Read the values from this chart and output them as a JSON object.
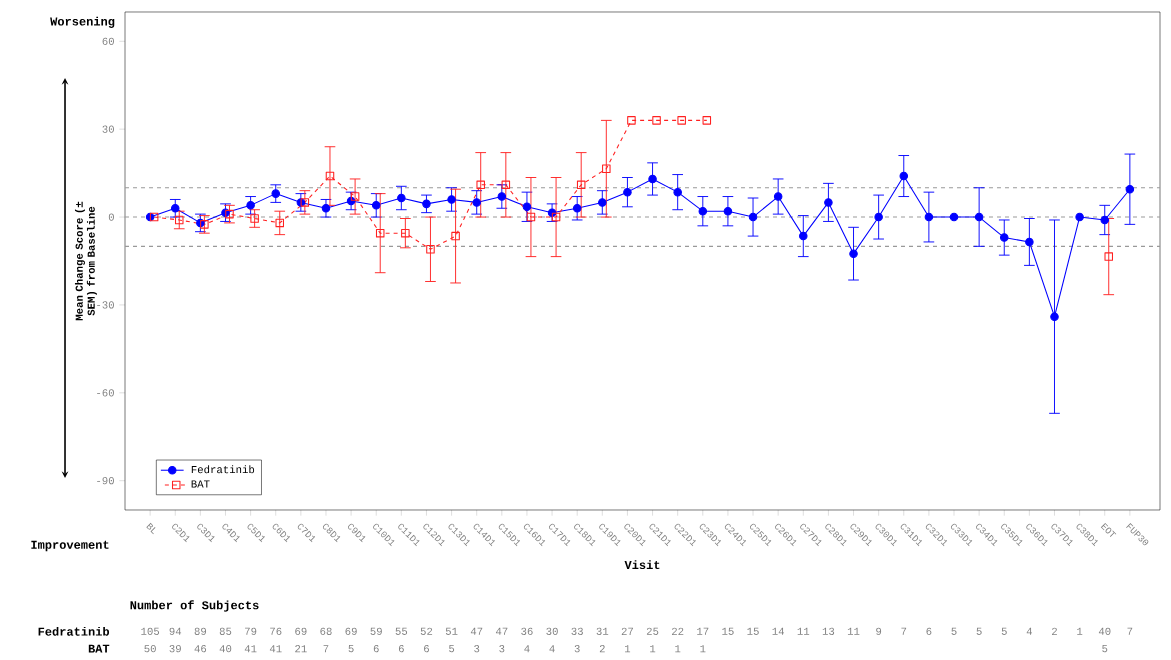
{
  "chart_data": {
    "type": "line",
    "xlabel": "Visit",
    "ylabel": "Mean Change Score (± SEM) from Baseline",
    "categories": [
      "BL",
      "C2D1",
      "C3D1",
      "C4D1",
      "C5D1",
      "C6D1",
      "C7D1",
      "C8D1",
      "C9D1",
      "C10D1",
      "C11D1",
      "C12D1",
      "C13D1",
      "C14D1",
      "C15D1",
      "C16D1",
      "C17D1",
      "C18D1",
      "C19D1",
      "C20D1",
      "C21D1",
      "C22D1",
      "C23D1",
      "C24D1",
      "C25D1",
      "C26D1",
      "C27D1",
      "C28D1",
      "C29D1",
      "C30D1",
      "C31D1",
      "C32D1",
      "C33D1",
      "C34D1",
      "C35D1",
      "C36D1",
      "C37D1",
      "C38D1",
      "EOT",
      "FUP30"
    ],
    "series": [
      {
        "name": "Fedratinib",
        "color": "#0000ff",
        "marker": "circle",
        "line_style": "solid",
        "values": [
          0,
          3,
          -2,
          1.5,
          4,
          8,
          5,
          3,
          5.5,
          4,
          6.5,
          4.5,
          6,
          5,
          7,
          3.5,
          1.5,
          3,
          5,
          8.5,
          13,
          8.5,
          2,
          2,
          0,
          7,
          -6.5,
          5,
          -12.5,
          0,
          14,
          0,
          0,
          0,
          -7,
          -8.5,
          -34,
          0,
          -1,
          9.5
        ],
        "errors": [
          null,
          3,
          3,
          3,
          3,
          3,
          3,
          3,
          3,
          4,
          4,
          3,
          4,
          4,
          4,
          5,
          3,
          4,
          4,
          5,
          5.5,
          6,
          5,
          5,
          6.5,
          6,
          7,
          6.5,
          9,
          7.5,
          7,
          8.5,
          null,
          10,
          6,
          8,
          33,
          null,
          5,
          12
        ]
      },
      {
        "name": "BAT",
        "color": "#ff2020",
        "marker": "square",
        "line_style": "dashed",
        "values": [
          0,
          -1,
          -2.5,
          1,
          -0.5,
          -2,
          5,
          14,
          7,
          -5.5,
          -5.5,
          -11,
          -6.5,
          11,
          11,
          0,
          0,
          11,
          16.5,
          33,
          33,
          33,
          33,
          null,
          null,
          null,
          null,
          null,
          null,
          null,
          null,
          null,
          null,
          null,
          null,
          null,
          null,
          null,
          -13.5,
          null
        ],
        "errors": [
          null,
          3,
          3,
          3,
          3,
          4,
          4,
          10,
          6,
          13.5,
          5,
          11,
          16,
          11,
          11,
          13.5,
          13.5,
          11,
          16.5,
          null,
          null,
          null,
          null,
          null,
          null,
          null,
          null,
          null,
          null,
          null,
          null,
          null,
          null,
          null,
          null,
          null,
          null,
          null,
          13,
          null
        ]
      }
    ],
    "ylim": [
      -100,
      70
    ],
    "yticks": [
      -90,
      -60,
      -30,
      0,
      30,
      60
    ],
    "grid": false,
    "legend": "bottom left",
    "ref_lines": [
      {
        "axis": "y",
        "value": 10,
        "color": "#999999",
        "line_style": "dashed"
      },
      {
        "axis": "y",
        "value": 0,
        "color": "#999999",
        "line_style": "dashed"
      },
      {
        "axis": "y",
        "value": -10,
        "color": "#999999",
        "line_style": "dashed"
      }
    ],
    "annotations": [
      "Worsening",
      "Improvement",
      "Number of Subjects",
      "Fedratinib",
      "BAT",
      "105",
      "94",
      "89",
      "85",
      "79",
      "76",
      "69",
      "68",
      "69",
      "59",
      "55",
      "52",
      "51",
      "47",
      "47",
      "36",
      "30",
      "33",
      "31",
      "27",
      "25",
      "22",
      "17",
      "15",
      "15",
      "14",
      "11",
      "13",
      "11",
      "9",
      "7",
      "6",
      "5",
      "5",
      "5",
      "4",
      "2",
      "1",
      "40",
      "7",
      "50",
      "39",
      "46",
      "40",
      "41",
      "41",
      "21",
      "7",
      "5",
      "6",
      "6",
      "6",
      "5",
      "3",
      "3",
      "4",
      "4",
      "3",
      "2",
      "1",
      "1",
      "1",
      "1",
      "5"
    ]
  }
}
